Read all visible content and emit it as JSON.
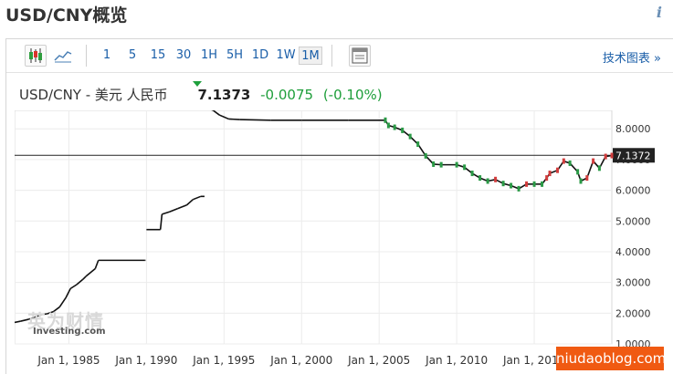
{
  "page": {
    "title": "USD/CNY概览"
  },
  "toolbar": {
    "ranges": [
      "1",
      "5",
      "15",
      "30",
      "1H",
      "5H",
      "1D",
      "1W",
      "1M"
    ],
    "active_range": "1M",
    "tech_chart_link": "技术图表 »"
  },
  "quote": {
    "name": "USD/CNY - 美元 人民币",
    "price": "7.1373",
    "change": "-0.0075",
    "change_pct": "(-0.10%)",
    "down_color": "#1ea03c"
  },
  "watermark": "niudaoblog.com",
  "logo": {
    "cn": "英为财情",
    "en": "Investing.com"
  },
  "chart_data": {
    "type": "line",
    "title": "",
    "xlabel": "",
    "ylabel": "",
    "x_ticks": [
      "Jan 1, 1985",
      "Jan 1, 1990",
      "Jan 1, 1995",
      "Jan 1, 2000",
      "Jan 1, 2005",
      "Jan 1, 2010",
      "Jan 1, 2015"
    ],
    "y_ticks": [
      "8.0000",
      "7.0000",
      "6.0000",
      "5.0000",
      "4.0000",
      "3.0000",
      "2.0000",
      "1.0000"
    ],
    "xlim": [
      1981.5,
      2020.0
    ],
    "ylim": [
      1.0,
      8.6
    ],
    "current_value": 7.1372,
    "current_label": "7.1372",
    "grid": true,
    "series": [
      {
        "values": [
          [
            1981.5,
            1.7
          ],
          [
            1981.9,
            1.74
          ],
          [
            1982.4,
            1.8
          ],
          [
            1982.8,
            1.87
          ],
          [
            1983.2,
            1.95
          ],
          [
            1983.6,
            1.98
          ],
          [
            1984.0,
            2.05
          ],
          [
            1984.4,
            2.2
          ],
          [
            1984.8,
            2.5
          ],
          [
            1985.1,
            2.8
          ],
          [
            1985.5,
            2.93
          ],
          [
            1985.9,
            3.1
          ],
          [
            1986.1,
            3.2
          ],
          [
            1986.7,
            3.45
          ],
          [
            1986.9,
            3.72
          ],
          [
            1989.9,
            3.72
          ],
          [
            1990.0,
            4.72
          ],
          [
            1990.9,
            4.72
          ],
          [
            1991.0,
            5.22
          ],
          [
            1991.5,
            5.3
          ],
          [
            1992.0,
            5.4
          ],
          [
            1992.6,
            5.52
          ],
          [
            1993.0,
            5.7
          ],
          [
            1993.5,
            5.8
          ],
          [
            1993.8,
            8.7
          ],
          [
            1994.3,
            8.6
          ],
          [
            1994.7,
            8.45
          ],
          [
            1995.3,
            8.32
          ],
          [
            1996.0,
            8.3
          ],
          [
            1998.0,
            8.28
          ],
          [
            2000.0,
            8.28
          ],
          [
            2003.0,
            8.28
          ],
          [
            2005.4,
            8.28
          ],
          [
            2005.6,
            8.11
          ],
          [
            2006.0,
            8.05
          ],
          [
            2006.5,
            7.95
          ],
          [
            2007.0,
            7.75
          ],
          [
            2007.5,
            7.5
          ],
          [
            2008.0,
            7.12
          ],
          [
            2008.5,
            6.85
          ],
          [
            2009.0,
            6.83
          ],
          [
            2010.0,
            6.83
          ],
          [
            2010.5,
            6.75
          ],
          [
            2011.0,
            6.55
          ],
          [
            2011.5,
            6.4
          ],
          [
            2012.0,
            6.3
          ],
          [
            2012.5,
            6.35
          ],
          [
            2013.0,
            6.22
          ],
          [
            2013.5,
            6.15
          ],
          [
            2014.0,
            6.05
          ],
          [
            2014.5,
            6.2
          ],
          [
            2015.0,
            6.2
          ],
          [
            2015.5,
            6.2
          ],
          [
            2015.8,
            6.4
          ],
          [
            2016.0,
            6.55
          ],
          [
            2016.5,
            6.65
          ],
          [
            2016.9,
            6.95
          ],
          [
            2017.3,
            6.88
          ],
          [
            2017.8,
            6.6
          ],
          [
            2018.0,
            6.3
          ],
          [
            2018.4,
            6.4
          ],
          [
            2018.8,
            6.95
          ],
          [
            2019.2,
            6.72
          ],
          [
            2019.6,
            7.1
          ],
          [
            2020.0,
            7.13
          ]
        ]
      }
    ]
  }
}
